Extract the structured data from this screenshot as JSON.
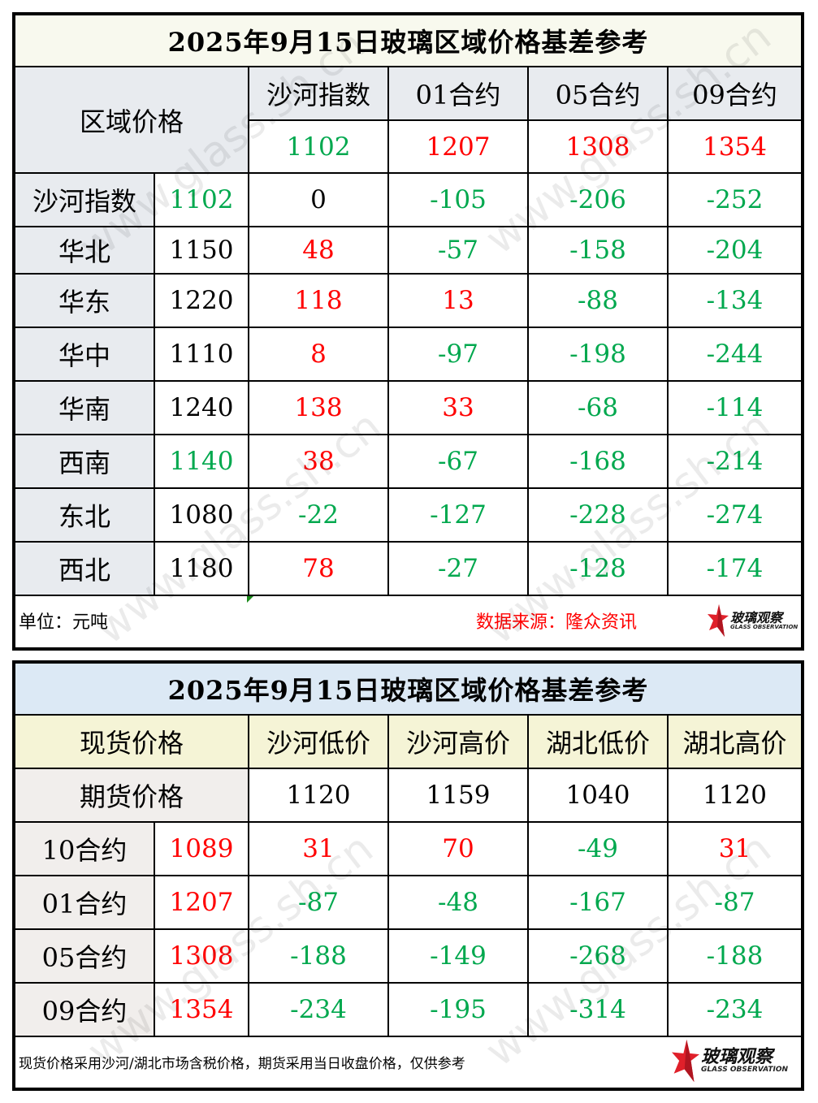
{
  "watermark_text": "www.glass.sh.cn",
  "colors": {
    "positive": "#ff0000",
    "negative": "#00a84e",
    "neutral": "#000000"
  },
  "table1": {
    "title": "2025年9月15日玻璃区域价格基差参考",
    "corner_label": "区域价格",
    "columns": [
      {
        "label": "沙河指数",
        "price": "1102",
        "color": "green"
      },
      {
        "label": "01合约",
        "price": "1207",
        "color": "red"
      },
      {
        "label": "05合约",
        "price": "1308",
        "color": "red"
      },
      {
        "label": "09合约",
        "price": "1354",
        "color": "red"
      }
    ],
    "rows": [
      {
        "region": "沙河指数",
        "price": "1102",
        "price_color": "green",
        "values": [
          {
            "v": "0",
            "c": "black"
          },
          {
            "v": "-105",
            "c": "green"
          },
          {
            "v": "-206",
            "c": "green"
          },
          {
            "v": "-252",
            "c": "green"
          }
        ]
      },
      {
        "region": "华北",
        "price": "1150",
        "price_color": "black",
        "values": [
          {
            "v": "48",
            "c": "red"
          },
          {
            "v": "-57",
            "c": "green"
          },
          {
            "v": "-158",
            "c": "green"
          },
          {
            "v": "-204",
            "c": "green"
          }
        ]
      },
      {
        "region": "华东",
        "price": "1220",
        "price_color": "black",
        "values": [
          {
            "v": "118",
            "c": "red"
          },
          {
            "v": "13",
            "c": "red"
          },
          {
            "v": "-88",
            "c": "green"
          },
          {
            "v": "-134",
            "c": "green"
          }
        ]
      },
      {
        "region": "华中",
        "price": "1110",
        "price_color": "black",
        "values": [
          {
            "v": "8",
            "c": "red"
          },
          {
            "v": "-97",
            "c": "green"
          },
          {
            "v": "-198",
            "c": "green"
          },
          {
            "v": "-244",
            "c": "green"
          }
        ]
      },
      {
        "region": "华南",
        "price": "1240",
        "price_color": "black",
        "values": [
          {
            "v": "138",
            "c": "red"
          },
          {
            "v": "33",
            "c": "red"
          },
          {
            "v": "-68",
            "c": "green"
          },
          {
            "v": "-114",
            "c": "green"
          }
        ]
      },
      {
        "region": "西南",
        "price": "1140",
        "price_color": "green",
        "values": [
          {
            "v": "38",
            "c": "red"
          },
          {
            "v": "-67",
            "c": "green"
          },
          {
            "v": "-168",
            "c": "green"
          },
          {
            "v": "-214",
            "c": "green"
          }
        ]
      },
      {
        "region": "东北",
        "price": "1080",
        "price_color": "black",
        "values": [
          {
            "v": "-22",
            "c": "green"
          },
          {
            "v": "-127",
            "c": "green"
          },
          {
            "v": "-228",
            "c": "green"
          },
          {
            "v": "-274",
            "c": "green"
          }
        ]
      },
      {
        "region": "西北",
        "price": "1180",
        "price_color": "black",
        "values": [
          {
            "v": "78",
            "c": "red"
          },
          {
            "v": "-27",
            "c": "green"
          },
          {
            "v": "-128",
            "c": "green"
          },
          {
            "v": "-174",
            "c": "green"
          }
        ]
      }
    ],
    "footer": {
      "unit": "单位：元吨",
      "source": "数据来源：隆众资讯"
    }
  },
  "table2": {
    "title": "2025年9月15日玻璃区域价格基差参考",
    "spot_label": "现货价格",
    "futures_label": "期货价格",
    "columns": [
      {
        "label": "沙河低价",
        "price": "1120"
      },
      {
        "label": "沙河高价",
        "price": "1159"
      },
      {
        "label": "湖北低价",
        "price": "1040"
      },
      {
        "label": "湖北高价",
        "price": "1120"
      }
    ],
    "rows": [
      {
        "contract": "10合约",
        "price": "1089",
        "values": [
          {
            "v": "31",
            "c": "red"
          },
          {
            "v": "70",
            "c": "red"
          },
          {
            "v": "-49",
            "c": "green"
          },
          {
            "v": "31",
            "c": "red"
          }
        ]
      },
      {
        "contract": "01合约",
        "price": "1207",
        "values": [
          {
            "v": "-87",
            "c": "green"
          },
          {
            "v": "-48",
            "c": "green"
          },
          {
            "v": "-167",
            "c": "green"
          },
          {
            "v": "-87",
            "c": "green"
          }
        ]
      },
      {
        "contract": "05合约",
        "price": "1308",
        "values": [
          {
            "v": "-188",
            "c": "green"
          },
          {
            "v": "-149",
            "c": "green"
          },
          {
            "v": "-268",
            "c": "green"
          },
          {
            "v": "-188",
            "c": "green"
          }
        ]
      },
      {
        "contract": "09合约",
        "price": "1354",
        "values": [
          {
            "v": "-234",
            "c": "green"
          },
          {
            "v": "-195",
            "c": "green"
          },
          {
            "v": "-314",
            "c": "green"
          },
          {
            "v": "-234",
            "c": "green"
          }
        ]
      }
    ],
    "footer": {
      "note": "现货价格采用沙河/湖北市场含税价格，期货采用当日收盘价格，仅供参考"
    }
  },
  "logo": {
    "cn": "玻璃观察",
    "en": "GLASS OBSERVATION",
    "icon": "red-star-icon"
  }
}
